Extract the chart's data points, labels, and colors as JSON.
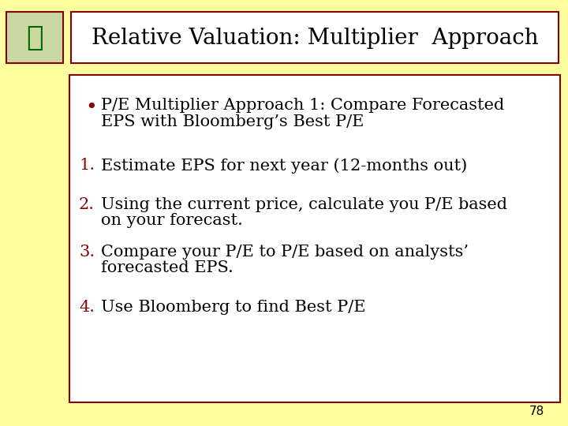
{
  "background_color": "#FFFFA0",
  "title": "Relative Valuation: Multiplier  Approach",
  "title_fontsize": 20,
  "title_color": "#000000",
  "title_box_bg": "#FFFFFF",
  "title_box_edge": "#8B0000",
  "content_box_bg": "#FFFFFF",
  "content_box_edge": "#8B0000",
  "bullet_text_line1": "P/E Multiplier Approach 1: Compare Forecasted",
  "bullet_text_line2": "EPS with Bloomberg’s Best P/E",
  "bullet_color": "#000000",
  "bullet_fontsize": 15,
  "numbered_items": [
    [
      "Estimate EPS for next year (12-months out)",
      ""
    ],
    [
      "Using the current price, calculate you P/E based",
      "on your forecast."
    ],
    [
      "Compare your P/E to P/E based on analysts’",
      "forecasted EPS."
    ],
    [
      "Use Bloomberg to find Best P/E",
      ""
    ]
  ],
  "numbered_color": "#8B0000",
  "text_color": "#000000",
  "numbered_fontsize": 15,
  "page_number": "78",
  "page_number_fontsize": 11,
  "page_number_color": "#000000",
  "icon_box_color": "#8B0000",
  "icon_bg": "#C8D8A0"
}
